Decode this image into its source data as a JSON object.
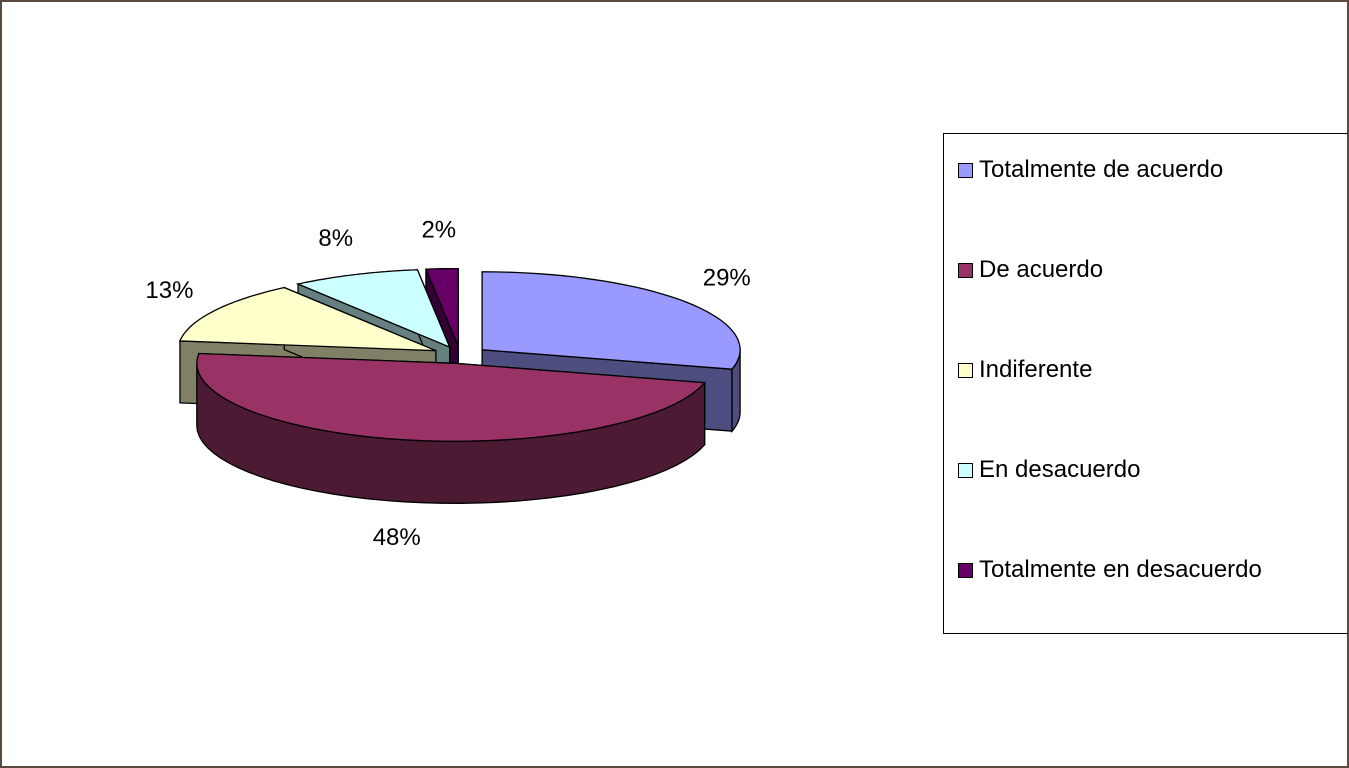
{
  "chart_data": {
    "type": "pie",
    "categories": [
      "Totalmente de acuerdo",
      "De acuerdo",
      "Indiferente",
      "En desacuerdo",
      "Totalmente en desacuerdo"
    ],
    "values": [
      29,
      48,
      13,
      8,
      2
    ],
    "value_labels": [
      "29%",
      "48%",
      "13%",
      "8%",
      "2%"
    ],
    "colors": [
      "#9999ff",
      "#993366",
      "#ffffcc",
      "#ccffff",
      "#660066"
    ],
    "legend": "right"
  }
}
